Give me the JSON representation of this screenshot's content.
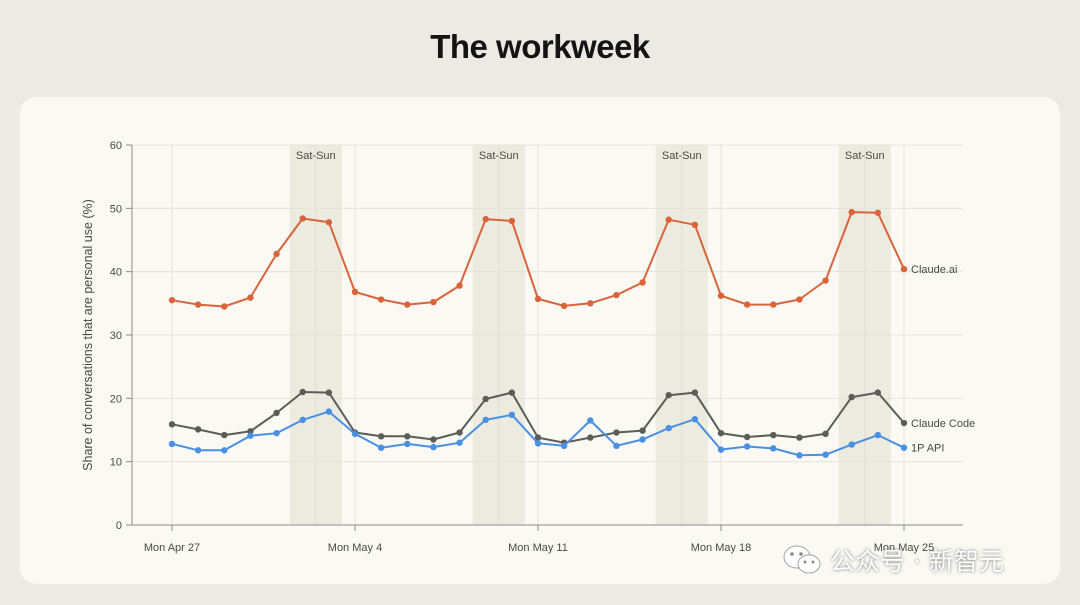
{
  "title": "The workweek",
  "watermark": {
    "text": "公众号 · 新智元",
    "icon": "wechat-icon"
  },
  "colors": {
    "claude_ai": "#d9643a",
    "claude_code": "#5e5c58",
    "api_1p": "#4a90e2",
    "weekend_band": "#ecebe0",
    "grid": "#e4e3da",
    "axis": "#8c8b86",
    "text": "#4a4944"
  },
  "chart_data": {
    "type": "line",
    "title": "The workweek",
    "xlabel": "",
    "ylabel": "Share of conversations that are personal use (%)",
    "ylim": [
      0,
      60
    ],
    "yticks": [
      0,
      10,
      20,
      30,
      40,
      50,
      60
    ],
    "grid": true,
    "x": [
      "Apr 27",
      "Apr 28",
      "Apr 29",
      "Apr 30",
      "May 1",
      "May 2",
      "May 3",
      "May 4",
      "May 5",
      "May 6",
      "May 7",
      "May 8",
      "May 9",
      "May 10",
      "May 11",
      "May 12",
      "May 13",
      "May 14",
      "May 15",
      "May 16",
      "May 17",
      "May 18",
      "May 19",
      "May 20",
      "May 21",
      "May 22",
      "May 23",
      "May 24",
      "May 25"
    ],
    "xticks": [
      {
        "index": 0,
        "label": "Mon Apr 27"
      },
      {
        "index": 7,
        "label": "Mon May 4"
      },
      {
        "index": 14,
        "label": "Mon May 11"
      },
      {
        "index": 21,
        "label": "Mon May 18"
      },
      {
        "index": 28,
        "label": "Mon May 25"
      }
    ],
    "weekends": [
      {
        "start": 5,
        "end": 6,
        "label": "Sat-Sun"
      },
      {
        "start": 12,
        "end": 13,
        "label": "Sat-Sun"
      },
      {
        "start": 19,
        "end": 20,
        "label": "Sat-Sun"
      },
      {
        "start": 26,
        "end": 27,
        "label": "Sat-Sun"
      }
    ],
    "series": [
      {
        "name": "Claude.ai",
        "color": "#d9643a",
        "values": [
          35.5,
          34.8,
          34.5,
          35.9,
          42.8,
          48.4,
          47.8,
          36.8,
          35.6,
          34.8,
          35.2,
          37.8,
          48.3,
          48.0,
          35.7,
          34.6,
          35.0,
          36.3,
          38.3,
          48.2,
          47.4,
          36.2,
          34.8,
          34.8,
          35.6,
          38.6,
          49.4,
          49.3,
          40.4
        ]
      },
      {
        "name": "Claude Code",
        "color": "#5e5c58",
        "values": [
          15.9,
          15.1,
          14.2,
          14.8,
          17.7,
          21.0,
          20.9,
          14.6,
          14.0,
          14.0,
          13.5,
          14.6,
          19.9,
          20.9,
          13.8,
          13.0,
          13.8,
          14.6,
          14.9,
          20.5,
          20.9,
          14.5,
          13.9,
          14.2,
          13.8,
          14.4,
          20.2,
          20.9,
          16.1
        ]
      },
      {
        "name": "1P API",
        "color": "#4a90e2",
        "values": [
          12.8,
          11.8,
          11.8,
          14.1,
          14.5,
          16.6,
          17.9,
          14.4,
          12.2,
          12.8,
          12.3,
          13.0,
          16.6,
          17.4,
          12.9,
          12.5,
          16.5,
          12.5,
          13.5,
          15.3,
          16.7,
          11.9,
          12.4,
          12.1,
          11.0,
          11.1,
          12.7,
          14.2,
          12.2
        ]
      }
    ]
  }
}
